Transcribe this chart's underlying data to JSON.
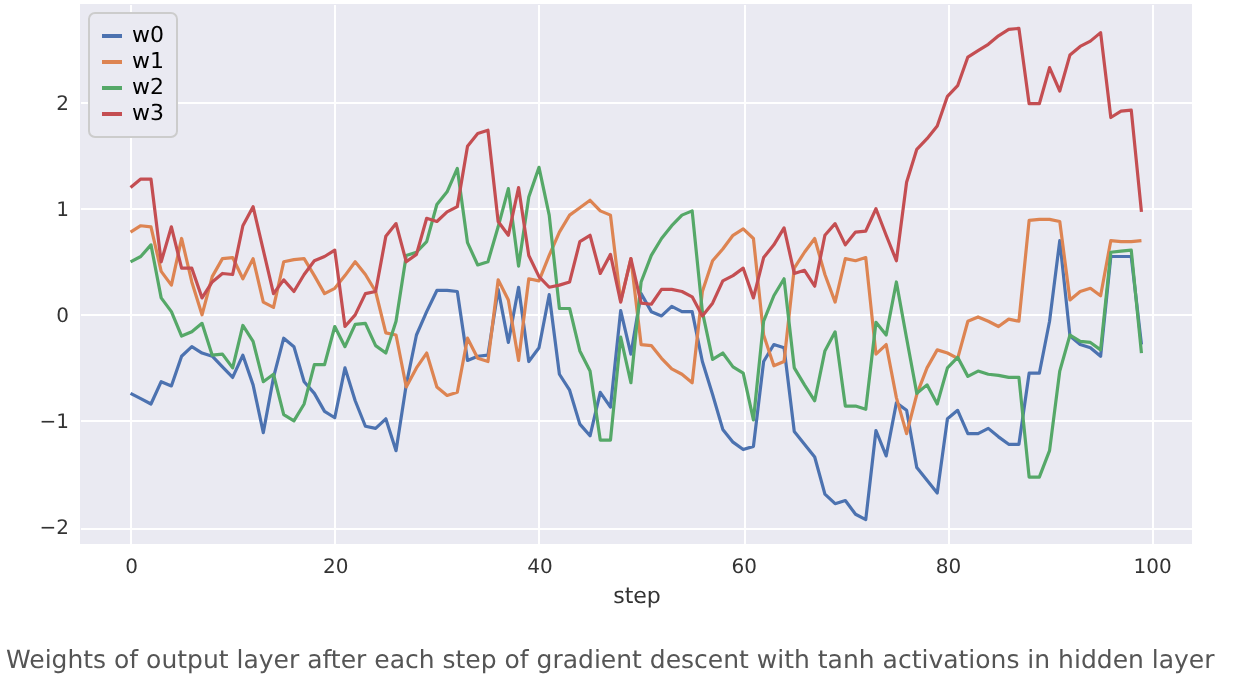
{
  "chart_data": {
    "type": "line",
    "xlabel": "step",
    "x": [
      0,
      1,
      2,
      3,
      4,
      5,
      6,
      7,
      8,
      9,
      10,
      11,
      12,
      13,
      14,
      15,
      16,
      17,
      18,
      19,
      20,
      21,
      22,
      23,
      24,
      25,
      26,
      27,
      28,
      29,
      30,
      31,
      32,
      33,
      34,
      35,
      36,
      37,
      38,
      39,
      40,
      41,
      42,
      43,
      44,
      45,
      46,
      47,
      48,
      49,
      50,
      51,
      52,
      53,
      54,
      55,
      56,
      57,
      58,
      59,
      60,
      61,
      62,
      63,
      64,
      65,
      66,
      67,
      68,
      69,
      70,
      71,
      72,
      73,
      74,
      75,
      76,
      77,
      78,
      79,
      80,
      81,
      82,
      83,
      84,
      85,
      86,
      87,
      88,
      89,
      90,
      91,
      92,
      93,
      94,
      95,
      96,
      97,
      98,
      99
    ],
    "series": [
      {
        "name": "w0",
        "color": "#4c72b0",
        "values": [
          -0.74,
          -0.79,
          -0.84,
          -0.63,
          -0.67,
          -0.39,
          -0.3,
          -0.36,
          -0.39,
          -0.49,
          -0.59,
          -0.38,
          -0.66,
          -1.11,
          -0.59,
          -0.22,
          -0.3,
          -0.63,
          -0.74,
          -0.91,
          -0.97,
          -0.5,
          -0.81,
          -1.05,
          -1.07,
          -0.98,
          -1.28,
          -0.66,
          -0.19,
          0.03,
          0.23,
          0.23,
          0.22,
          -0.43,
          -0.39,
          -0.38,
          0.24,
          -0.26,
          0.26,
          -0.44,
          -0.31,
          0.19,
          -0.56,
          -0.71,
          -1.03,
          -1.14,
          -0.73,
          -0.87,
          0.04,
          -0.37,
          0.2,
          0.03,
          -0.01,
          0.08,
          0.03,
          0.03,
          -0.44,
          -0.75,
          -1.08,
          -1.2,
          -1.27,
          -1.24,
          -0.44,
          -0.28,
          -0.31,
          -1.1,
          -1.22,
          -1.34,
          -1.69,
          -1.78,
          -1.75,
          -1.88,
          -1.93,
          -1.09,
          -1.33,
          -0.83,
          -0.9,
          -1.44,
          -1.56,
          -1.68,
          -0.98,
          -0.9,
          -1.12,
          -1.12,
          -1.07,
          -1.15,
          -1.22,
          -1.22,
          -0.55,
          -0.55,
          -0.06,
          0.7,
          -0.2,
          -0.28,
          -0.31,
          -0.39,
          0.55,
          0.55,
          0.55,
          -0.28
        ]
      },
      {
        "name": "w1",
        "color": "#dd8452",
        "values": [
          0.78,
          0.84,
          0.83,
          0.41,
          0.28,
          0.72,
          0.31,
          0.0,
          0.36,
          0.53,
          0.54,
          0.34,
          0.53,
          0.12,
          0.07,
          0.5,
          0.52,
          0.53,
          0.37,
          0.2,
          0.25,
          0.37,
          0.5,
          0.38,
          0.22,
          -0.17,
          -0.19,
          -0.68,
          -0.5,
          -0.36,
          -0.68,
          -0.76,
          -0.73,
          -0.22,
          -0.41,
          -0.44,
          0.33,
          0.14,
          -0.43,
          0.34,
          0.32,
          0.56,
          0.78,
          0.94,
          1.01,
          1.08,
          0.98,
          0.94,
          0.13,
          0.53,
          -0.28,
          -0.29,
          -0.41,
          -0.51,
          -0.56,
          -0.64,
          0.22,
          0.51,
          0.62,
          0.75,
          0.81,
          0.72,
          -0.19,
          -0.48,
          -0.44,
          0.44,
          0.59,
          0.72,
          0.38,
          0.12,
          0.53,
          0.51,
          0.54,
          -0.37,
          -0.28,
          -0.78,
          -1.12,
          -0.75,
          -0.5,
          -0.33,
          -0.36,
          -0.41,
          -0.06,
          -0.02,
          -0.06,
          -0.11,
          -0.04,
          -0.06,
          0.89,
          0.9,
          0.9,
          0.88,
          0.14,
          0.22,
          0.25,
          0.18,
          0.7,
          0.69,
          0.69,
          0.7
        ]
      },
      {
        "name": "w2",
        "color": "#55a868",
        "values": [
          0.5,
          0.55,
          0.66,
          0.16,
          0.03,
          -0.2,
          -0.16,
          -0.08,
          -0.38,
          -0.37,
          -0.5,
          -0.1,
          -0.25,
          -0.63,
          -0.56,
          -0.94,
          -1.0,
          -0.84,
          -0.47,
          -0.47,
          -0.11,
          -0.3,
          -0.09,
          -0.08,
          -0.29,
          -0.36,
          -0.06,
          0.56,
          0.59,
          0.69,
          1.04,
          1.16,
          1.38,
          0.68,
          0.47,
          0.5,
          0.83,
          1.19,
          0.46,
          1.11,
          1.39,
          0.94,
          0.06,
          0.06,
          -0.34,
          -0.53,
          -1.18,
          -1.18,
          -0.21,
          -0.64,
          0.31,
          0.56,
          0.72,
          0.84,
          0.94,
          0.98,
          0.03,
          -0.42,
          -0.36,
          -0.49,
          -0.55,
          -0.99,
          -0.06,
          0.18,
          0.34,
          -0.5,
          -0.66,
          -0.81,
          -0.34,
          -0.16,
          -0.86,
          -0.86,
          -0.89,
          -0.07,
          -0.19,
          0.31,
          -0.22,
          -0.74,
          -0.66,
          -0.84,
          -0.5,
          -0.4,
          -0.58,
          -0.53,
          -0.56,
          -0.57,
          -0.59,
          -0.59,
          -1.53,
          -1.53,
          -1.28,
          -0.53,
          -0.19,
          -0.25,
          -0.26,
          -0.33,
          0.59,
          0.6,
          0.61,
          -0.36
        ]
      },
      {
        "name": "w3",
        "color": "#c44e52",
        "values": [
          1.2,
          1.28,
          1.28,
          0.5,
          0.83,
          0.44,
          0.44,
          0.16,
          0.31,
          0.39,
          0.38,
          0.84,
          1.02,
          0.61,
          0.2,
          0.33,
          0.22,
          0.38,
          0.51,
          0.55,
          0.61,
          -0.11,
          0.0,
          0.2,
          0.22,
          0.74,
          0.86,
          0.5,
          0.57,
          0.91,
          0.88,
          0.97,
          1.02,
          1.59,
          1.71,
          1.74,
          0.88,
          0.75,
          1.2,
          0.56,
          0.36,
          0.26,
          0.28,
          0.31,
          0.69,
          0.75,
          0.39,
          0.57,
          0.12,
          0.53,
          0.11,
          0.1,
          0.24,
          0.24,
          0.22,
          0.17,
          -0.01,
          0.11,
          0.32,
          0.37,
          0.44,
          0.16,
          0.54,
          0.66,
          0.82,
          0.39,
          0.42,
          0.27,
          0.75,
          0.86,
          0.66,
          0.78,
          0.79,
          1.0,
          0.75,
          0.51,
          1.25,
          1.56,
          1.66,
          1.78,
          2.06,
          2.16,
          2.43,
          2.49,
          2.55,
          2.63,
          2.69,
          2.7,
          1.99,
          1.99,
          2.33,
          2.11,
          2.45,
          2.53,
          2.58,
          2.66,
          1.86,
          1.92,
          1.93,
          0.97
        ]
      }
    ],
    "xlim": [
      -4.95,
      103.95
    ],
    "ylim": [
      -2.16,
      2.93
    ],
    "xticks": [
      0,
      20,
      40,
      60,
      80,
      100
    ],
    "yticks": [
      -2,
      -1,
      0,
      1,
      2
    ],
    "grid": true,
    "legend": "top left",
    "marker": "none",
    "line_style": "solid",
    "annotations": [
      "Weights of output layer after each step of gradient descent with tanh activations in hidden layer"
    ]
  }
}
